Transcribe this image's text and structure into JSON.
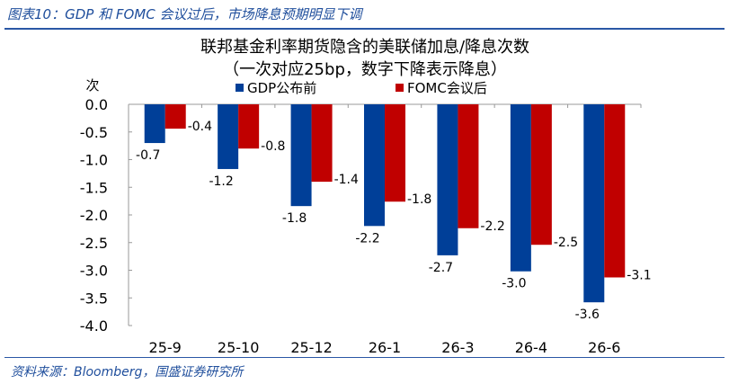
{
  "figure_title": "图表10：GDP 和 FOMC 会议过后，市场降息预期明显下调",
  "source": "资料来源：Bloomberg，国盛证券研究所",
  "chart_data": {
    "type": "bar",
    "title": "联邦基金利率期货隐含的美联储加息/降息次数",
    "subtitle": "（一次对应25bp，数字下降表示降息）",
    "ylabel": "次",
    "xlabel": "",
    "ylim": [
      -4.0,
      0.0
    ],
    "yticks": [
      "0.0",
      "-0.5",
      "-1.0",
      "-1.5",
      "-2.0",
      "-2.5",
      "-3.0",
      "-3.5",
      "-4.0"
    ],
    "categories": [
      "25-9",
      "25-10",
      "25-12",
      "26-1",
      "26-3",
      "26-4",
      "26-6"
    ],
    "legend_position": "top",
    "grid": false,
    "series": [
      {
        "name": "GDP公布前",
        "color": "#003f98",
        "values": [
          -0.7,
          -1.17,
          -1.84,
          -2.2,
          -2.73,
          -3.02,
          -3.58
        ],
        "labels": [
          "-0.7",
          "-1.2",
          "-1.8",
          "-2.2",
          "-2.7",
          "-3.0",
          "-3.6"
        ]
      },
      {
        "name": "FOMC会议后",
        "color": "#c00000",
        "values": [
          -0.44,
          -0.8,
          -1.4,
          -1.76,
          -2.24,
          -2.54,
          -3.13
        ],
        "labels": [
          "-0.4",
          "-0.8",
          "-1.4",
          "-1.8",
          "-2.2",
          "-2.5",
          "-3.1"
        ]
      }
    ]
  }
}
